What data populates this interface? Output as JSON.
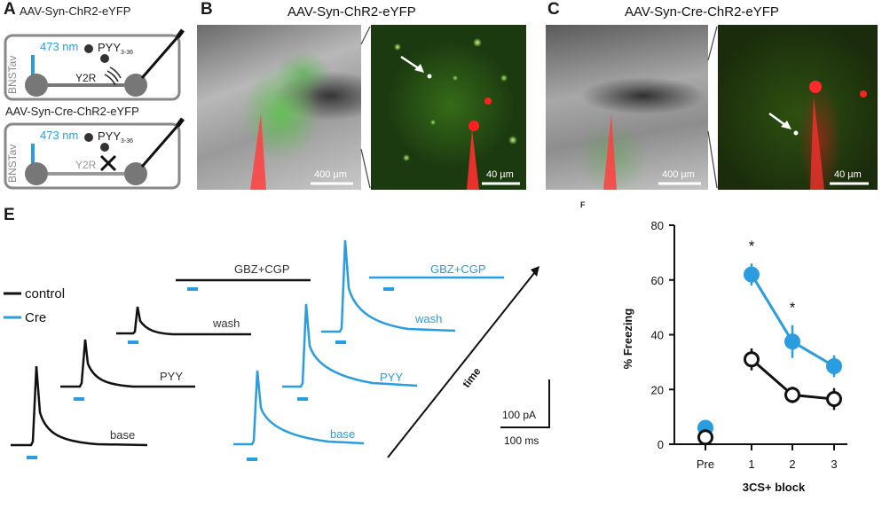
{
  "panels": {
    "a": {
      "label": "A",
      "top": {
        "title": "AAV-Syn-ChR2-eYFP",
        "region": "BNSTav",
        "wavelength": "473 nm",
        "peptide": "PYY",
        "peptide_sub": "3-36",
        "receptor": "Y2R"
      },
      "bottom": {
        "title": "AAV-Syn-Cre-ChR2-eYFP",
        "region": "BNSTav",
        "wavelength": "473 nm",
        "peptide": "PYY",
        "peptide_sub": "3-36",
        "receptor": "Y2R"
      }
    },
    "b": {
      "label": "B",
      "title": "AAV-Syn-ChR2-eYFP",
      "scale_low": "400 µm",
      "scale_high": "40 µm"
    },
    "c": {
      "label": "C",
      "title": "AAV-Syn-Cre-ChR2-eYFP",
      "scale_low": "400 µm",
      "scale_high": "40 µm"
    },
    "e": {
      "label": "E",
      "legend": [
        {
          "name": "control",
          "color": "#111111"
        },
        {
          "name": "Cre",
          "color": "#2a9de0"
        }
      ],
      "control_traces": [
        "GBZ+CGP",
        "wash",
        "PYY",
        "base"
      ],
      "cre_traces": [
        "GBZ+CGP",
        "wash",
        "PYY",
        "base"
      ],
      "time_label": "time",
      "scalebar_y": "100 pA",
      "scalebar_x": "100 ms"
    },
    "f": {
      "label": "F"
    }
  },
  "chart_data": {
    "type": "line",
    "ylabel": "% Freezing",
    "xlabel": "3CS+ block",
    "categories": [
      "Pre",
      "1",
      "2",
      "3"
    ],
    "ylim": [
      0,
      80
    ],
    "yticks": [
      0,
      20,
      40,
      60,
      80
    ],
    "series": [
      {
        "color": "#2a9de0",
        "fill": "filled",
        "values": [
          6,
          62,
          37.5,
          28.5
        ],
        "err": [
          1.5,
          4,
          6,
          4
        ]
      },
      {
        "color": "#111111",
        "fill": "open",
        "values": [
          2.5,
          31,
          18,
          16.5
        ],
        "err": [
          1.5,
          4,
          3,
          4
        ]
      }
    ],
    "annotations": [
      {
        "category": "1",
        "text": "*"
      },
      {
        "category": "2",
        "text": "*"
      }
    ]
  }
}
